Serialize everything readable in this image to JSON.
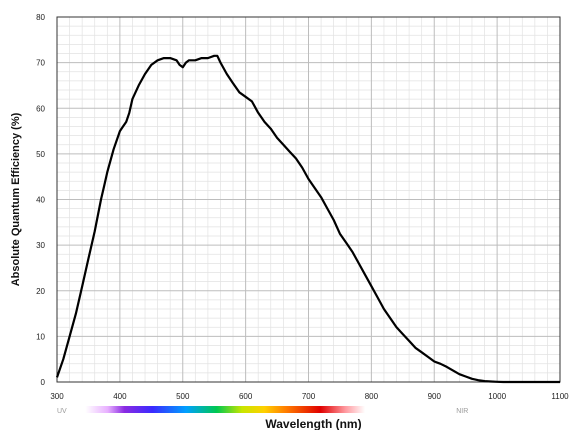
{
  "chart_data": {
    "type": "line",
    "title": "",
    "xlabel": "Wavelength (nm)",
    "ylabel": "Absolute Quantum Efficiency (%)",
    "xlim": [
      300,
      1100
    ],
    "ylim": [
      0,
      80
    ],
    "x_ticks": [
      300,
      400,
      500,
      600,
      700,
      800,
      900,
      1000,
      1100
    ],
    "y_ticks": [
      0,
      10,
      20,
      30,
      40,
      50,
      60,
      70,
      80
    ],
    "grid": true,
    "spectrum_labels": {
      "uv": "UV",
      "nir": "NIR"
    },
    "colors": {
      "line": "#000000",
      "grid_major": "#bdbdbd",
      "grid_minor": "#e2e2e2"
    },
    "series": [
      {
        "x": [
          300,
          310,
          320,
          330,
          340,
          350,
          360,
          370,
          375,
          380,
          390,
          400,
          405,
          410,
          415,
          420,
          430,
          440,
          450,
          460,
          470,
          480,
          490,
          495,
          500,
          505,
          510,
          520,
          530,
          540,
          550,
          555,
          560,
          570,
          580,
          590,
          600,
          610,
          620,
          630,
          640,
          650,
          660,
          670,
          680,
          690,
          700,
          710,
          720,
          730,
          740,
          750,
          760,
          770,
          780,
          790,
          800,
          810,
          820,
          830,
          840,
          850,
          860,
          870,
          880,
          890,
          900,
          910,
          920,
          930,
          940,
          950,
          960,
          970,
          980,
          990,
          1000,
          1010,
          1020,
          1050,
          1100
        ],
        "y": [
          1,
          5,
          10,
          15,
          21,
          27,
          33,
          40,
          43,
          46,
          51,
          55,
          56,
          57,
          59,
          62,
          65,
          67.5,
          69.5,
          70.5,
          71,
          71,
          70.5,
          69.5,
          69,
          70,
          70.5,
          70.5,
          71,
          71,
          71.5,
          71.5,
          70,
          67.5,
          65.5,
          63.5,
          62.5,
          61.5,
          59,
          57,
          55.5,
          53.5,
          52,
          50.5,
          49,
          47,
          44.5,
          42.5,
          40.5,
          38,
          35.5,
          32.5,
          30.5,
          28.5,
          26,
          23.5,
          21,
          18.5,
          16,
          14,
          12,
          10.5,
          9,
          7.5,
          6.5,
          5.5,
          4.5,
          4,
          3.3,
          2.5,
          1.7,
          1.2,
          0.7,
          0.4,
          0.2,
          0.1,
          0.05,
          0,
          0,
          0,
          0
        ]
      }
    ]
  }
}
